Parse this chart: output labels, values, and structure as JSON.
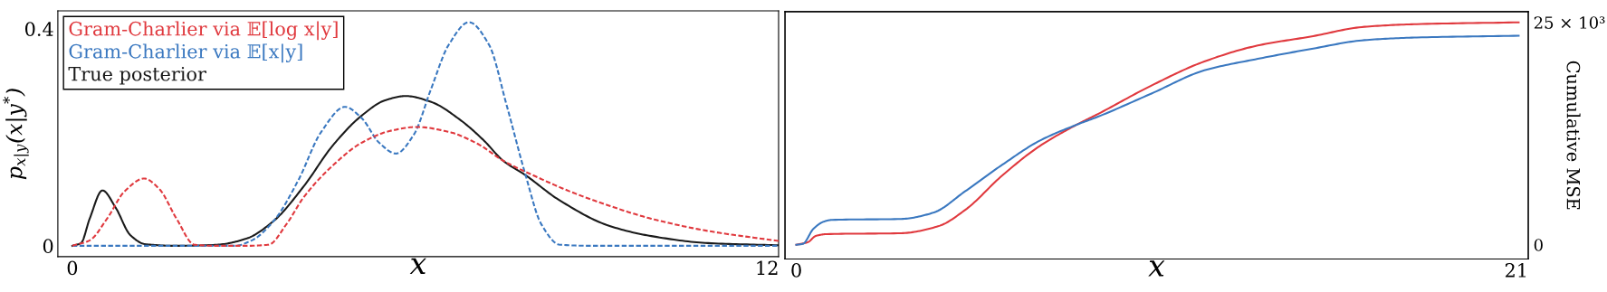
{
  "chart_data": [
    {
      "type": "line",
      "xlabel": "x",
      "ylabel": "p$_{x|y}$(x|y$^{*}$)",
      "xlim": [
        -0.25,
        12.2
      ],
      "ylim": [
        -0.02,
        0.433
      ],
      "xticks": [
        0,
        12
      ],
      "yticks": [
        0,
        0.4
      ],
      "legend": "top left",
      "grid": false,
      "line_style": "solid",
      "series": [
        {
          "name": "Gram-Charlier via 𝔼[log x|y]",
          "color": "#e0393e",
          "line_style": "dashed",
          "x": [
            0,
            0.3,
            0.6,
            0.9,
            1.24,
            1.5,
            1.8,
            2.11,
            2.5,
            3.0,
            3.39,
            3.7,
            4.0,
            4.5,
            5.0,
            5.5,
            5.95,
            6.5,
            7.0,
            7.44,
            8.0,
            8.6,
            9.27,
            10.0,
            11.0,
            12.2
          ],
          "values": [
            0,
            0.01,
            0.05,
            0.1,
            0.124,
            0.105,
            0.05,
            0.002,
            0,
            0,
            0.002,
            0.04,
            0.09,
            0.148,
            0.19,
            0.212,
            0.219,
            0.21,
            0.188,
            0.157,
            0.128,
            0.1,
            0.074,
            0.05,
            0.027,
            0.009
          ]
        },
        {
          "name": "Gram-Charlier via 𝔼[x|y]",
          "color": "#3a78c0",
          "line_style": "dashed",
          "x": [
            0,
            1.0,
            2.0,
            2.8,
            3.1,
            3.48,
            3.9,
            4.3,
            4.71,
            5.0,
            5.3,
            5.59,
            5.9,
            6.2,
            6.5,
            6.85,
            7.2,
            7.5,
            7.83,
            8.1,
            8.42,
            9.0,
            12.2
          ],
          "values": [
            0,
            0,
            0,
            0,
            0.01,
            0.046,
            0.12,
            0.21,
            0.256,
            0.235,
            0.19,
            0.17,
            0.205,
            0.29,
            0.37,
            0.412,
            0.37,
            0.26,
            0.13,
            0.04,
            0.002,
            0,
            0
          ]
        },
        {
          "name": "True posterior",
          "color": "#1a1a1a",
          "line_style": "solid",
          "x": [
            0,
            0.15,
            0.3,
            0.52,
            0.75,
            1.0,
            1.26,
            1.8,
            2.5,
            3.0,
            3.48,
            4.0,
            4.5,
            5.0,
            5.4,
            5.76,
            6.2,
            6.7,
            7.1,
            7.44,
            7.83,
            8.4,
            9.27,
            10.0,
            10.98,
            12.2
          ],
          "values": [
            0,
            0.005,
            0.05,
            0.102,
            0.07,
            0.02,
            0.003,
            0,
            0.002,
            0.013,
            0.046,
            0.11,
            0.185,
            0.24,
            0.268,
            0.276,
            0.265,
            0.232,
            0.195,
            0.157,
            0.13,
            0.085,
            0.037,
            0.018,
            0.005,
            0.001
          ]
        }
      ]
    },
    {
      "type": "line",
      "xlabel": "x",
      "y2label": "Cumulative MSE",
      "xlim": [
        -0.33,
        21.35
      ],
      "y2lim": [
        -1600,
        26200
      ],
      "xticks": [
        0,
        21
      ],
      "y2ticks": [
        0,
        {
          "value": 25000,
          "label": "25 × 10³"
        }
      ],
      "grid": false,
      "line_style": "solid",
      "series": [
        {
          "color": "#e0393e",
          "axis": "y2",
          "x": [
            0,
            0.34,
            0.57,
            0.89,
            3.06,
            4.15,
            4.92,
            6.01,
            7.1,
            8.18,
            8.8,
            10.36,
            11.9,
            13.46,
            15.0,
            16.57,
            18.1,
            21.07
          ],
          "values": [
            0,
            300,
            1000,
            1200,
            1300,
            2100,
            3900,
            7800,
            11100,
            13500,
            14700,
            17900,
            20600,
            22400,
            23400,
            24500,
            24800,
            25000
          ]
        },
        {
          "color": "#3a78c0",
          "axis": "y2",
          "x": [
            0,
            0.19,
            0.5,
            0.8,
            1.04,
            3.06,
            3.99,
            4.92,
            6.01,
            7.1,
            8.18,
            8.8,
            10.36,
            11.9,
            13.46,
            15.0,
            16.57,
            18.1,
            21.07
          ],
          "values": [
            0,
            100,
            1800,
            2600,
            2800,
            2900,
            3600,
            6000,
            9000,
            11700,
            13500,
            14400,
            17000,
            19600,
            20900,
            22000,
            23000,
            23300,
            23500
          ]
        }
      ]
    }
  ]
}
